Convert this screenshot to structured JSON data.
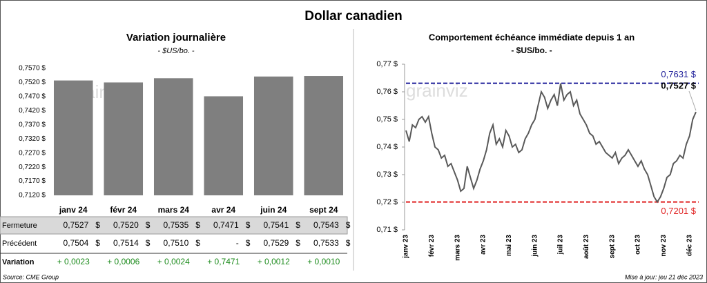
{
  "title": "Dollar canadien",
  "watermark": "grainviz",
  "source": "Source: CME Group",
  "updated": "Mise à jour: jeu 21 déc 2023",
  "chart_data": [
    {
      "type": "bar",
      "title": "Variation  journalière",
      "subtitle": "- $US/bo. -",
      "categories": [
        "janv 24",
        "févr 24",
        "mars 24",
        "avr 24",
        "juin 24",
        "sept 24"
      ],
      "values": [
        0.7527,
        0.752,
        0.7535,
        0.7471,
        0.7541,
        0.7543
      ],
      "color": "#7f7f7f",
      "ylim": [
        0.712,
        0.757
      ],
      "yticks": [
        {
          "value": 0.712,
          "label": "0,7120 $"
        },
        {
          "value": 0.717,
          "label": "0,7170 $"
        },
        {
          "value": 0.722,
          "label": "0,7220 $"
        },
        {
          "value": 0.727,
          "label": "0,7270 $"
        },
        {
          "value": 0.732,
          "label": "0,7320 $"
        },
        {
          "value": 0.737,
          "label": "0,7370 $"
        },
        {
          "value": 0.742,
          "label": "0,7420 $"
        },
        {
          "value": 0.747,
          "label": "0,7470 $"
        },
        {
          "value": 0.752,
          "label": "0,7520 $"
        },
        {
          "value": 0.757,
          "label": "0,7570 $"
        }
      ]
    },
    {
      "type": "line",
      "title": "Comportement échéance immédiate depuis 1 an",
      "subtitle": "- $US/bo. -",
      "categories": [
        "janv 23",
        null,
        null,
        null,
        null,
        null,
        null,
        null,
        "févr 23",
        null,
        null,
        null,
        null,
        null,
        null,
        null,
        "mars 23",
        null,
        null,
        null,
        null,
        null,
        null,
        null,
        "avr 23",
        null,
        null,
        null,
        null,
        null,
        null,
        null,
        "mai 23",
        null,
        null,
        null,
        null,
        null,
        null,
        null,
        "juin 23",
        null,
        null,
        null,
        null,
        null,
        null,
        null,
        "juil 23",
        null,
        null,
        null,
        null,
        null,
        null,
        null,
        "août 23",
        null,
        null,
        null,
        null,
        null,
        null,
        null,
        "sept 23",
        null,
        null,
        null,
        null,
        null,
        null,
        null,
        "oct 23",
        null,
        null,
        null,
        null,
        null,
        null,
        null,
        "nov 23",
        null,
        null,
        null,
        null,
        null,
        null,
        null,
        "déc 23",
        null,
        null
      ],
      "values": [
        0.746,
        0.742,
        0.748,
        0.747,
        0.75,
        0.751,
        0.749,
        0.751,
        0.745,
        0.74,
        0.739,
        0.736,
        0.737,
        0.733,
        0.734,
        0.731,
        0.728,
        0.724,
        0.725,
        0.733,
        0.729,
        0.725,
        0.728,
        0.732,
        0.735,
        0.739,
        0.745,
        0.748,
        0.741,
        0.743,
        0.74,
        0.746,
        0.744,
        0.74,
        0.741,
        0.738,
        0.739,
        0.743,
        0.745,
        0.748,
        0.75,
        0.755,
        0.76,
        0.758,
        0.754,
        0.757,
        0.759,
        0.755,
        0.763,
        0.757,
        0.759,
        0.76,
        0.755,
        0.757,
        0.752,
        0.75,
        0.748,
        0.745,
        0.744,
        0.741,
        0.742,
        0.74,
        0.738,
        0.737,
        0.736,
        0.738,
        0.734,
        0.736,
        0.737,
        0.739,
        0.737,
        0.735,
        0.733,
        0.735,
        0.732,
        0.73,
        0.726,
        0.722,
        0.7201,
        0.722,
        0.725,
        0.729,
        0.73,
        0.734,
        0.735,
        0.737,
        0.736,
        0.741,
        0.744,
        0.75,
        0.7527
      ],
      "value_labels": [
        null,
        null,
        null,
        null,
        null,
        null,
        null,
        null,
        null,
        null,
        null,
        null,
        null,
        null,
        null,
        null,
        null,
        null,
        null,
        null,
        null,
        null,
        null,
        null,
        null,
        null,
        null,
        null,
        null,
        null,
        null,
        null,
        null,
        null,
        null,
        null,
        null,
        null,
        null,
        null,
        null,
        null,
        null,
        null,
        null,
        null,
        null,
        null,
        null,
        null,
        null,
        null,
        null,
        null,
        null,
        null,
        null,
        null,
        null,
        null,
        null,
        null,
        null,
        null,
        null,
        null,
        null,
        null,
        null,
        null,
        null,
        null,
        null,
        null,
        null,
        null,
        null,
        null,
        null,
        null,
        null,
        null,
        null,
        null,
        null,
        null,
        null,
        null,
        null,
        null,
        "0,7527 $"
      ],
      "color": "#595959",
      "ylim": [
        0.71,
        0.77
      ],
      "yticks": [
        {
          "value": 0.71,
          "label": "0,71 $"
        },
        {
          "value": 0.72,
          "label": "0,72 $"
        },
        {
          "value": 0.73,
          "label": "0,73 $"
        },
        {
          "value": 0.74,
          "label": "0,74 $"
        },
        {
          "value": 0.75,
          "label": "0,75 $"
        },
        {
          "value": 0.76,
          "label": "0,76 $"
        },
        {
          "value": 0.77,
          "label": "0,77 $"
        }
      ],
      "reference_lines": [
        {
          "value": 0.7631,
          "label": "0,7631 $",
          "color": "#1f1f9a"
        },
        {
          "value": 0.7201,
          "label": "0,7201 $",
          "color": "#e02020"
        }
      ]
    }
  ],
  "table": {
    "rows": [
      {
        "label": "Fermeture",
        "cells": [
          [
            "0,7527",
            "$"
          ],
          [
            "0,7520",
            "$"
          ],
          [
            "0,7535",
            "$"
          ],
          [
            "0,7471",
            "$"
          ],
          [
            "0,7541",
            "$"
          ],
          [
            "0,7543",
            "$"
          ]
        ]
      },
      {
        "label": "Précédent",
        "cells": [
          [
            "0,7504",
            "$"
          ],
          [
            "0,7514",
            "$"
          ],
          [
            "0,7510",
            "$"
          ],
          [
            "-",
            "$"
          ],
          [
            "0,7529",
            "$"
          ],
          [
            "0,7533",
            "$"
          ]
        ]
      },
      {
        "label": "Variation",
        "cells": [
          [
            "+ 0,0023"
          ],
          [
            "+ 0,0006"
          ],
          [
            "+ 0,0024"
          ],
          [
            "+ 0,7471"
          ],
          [
            "+ 0,0012"
          ],
          [
            "+ 0,0010"
          ]
        ]
      }
    ]
  }
}
